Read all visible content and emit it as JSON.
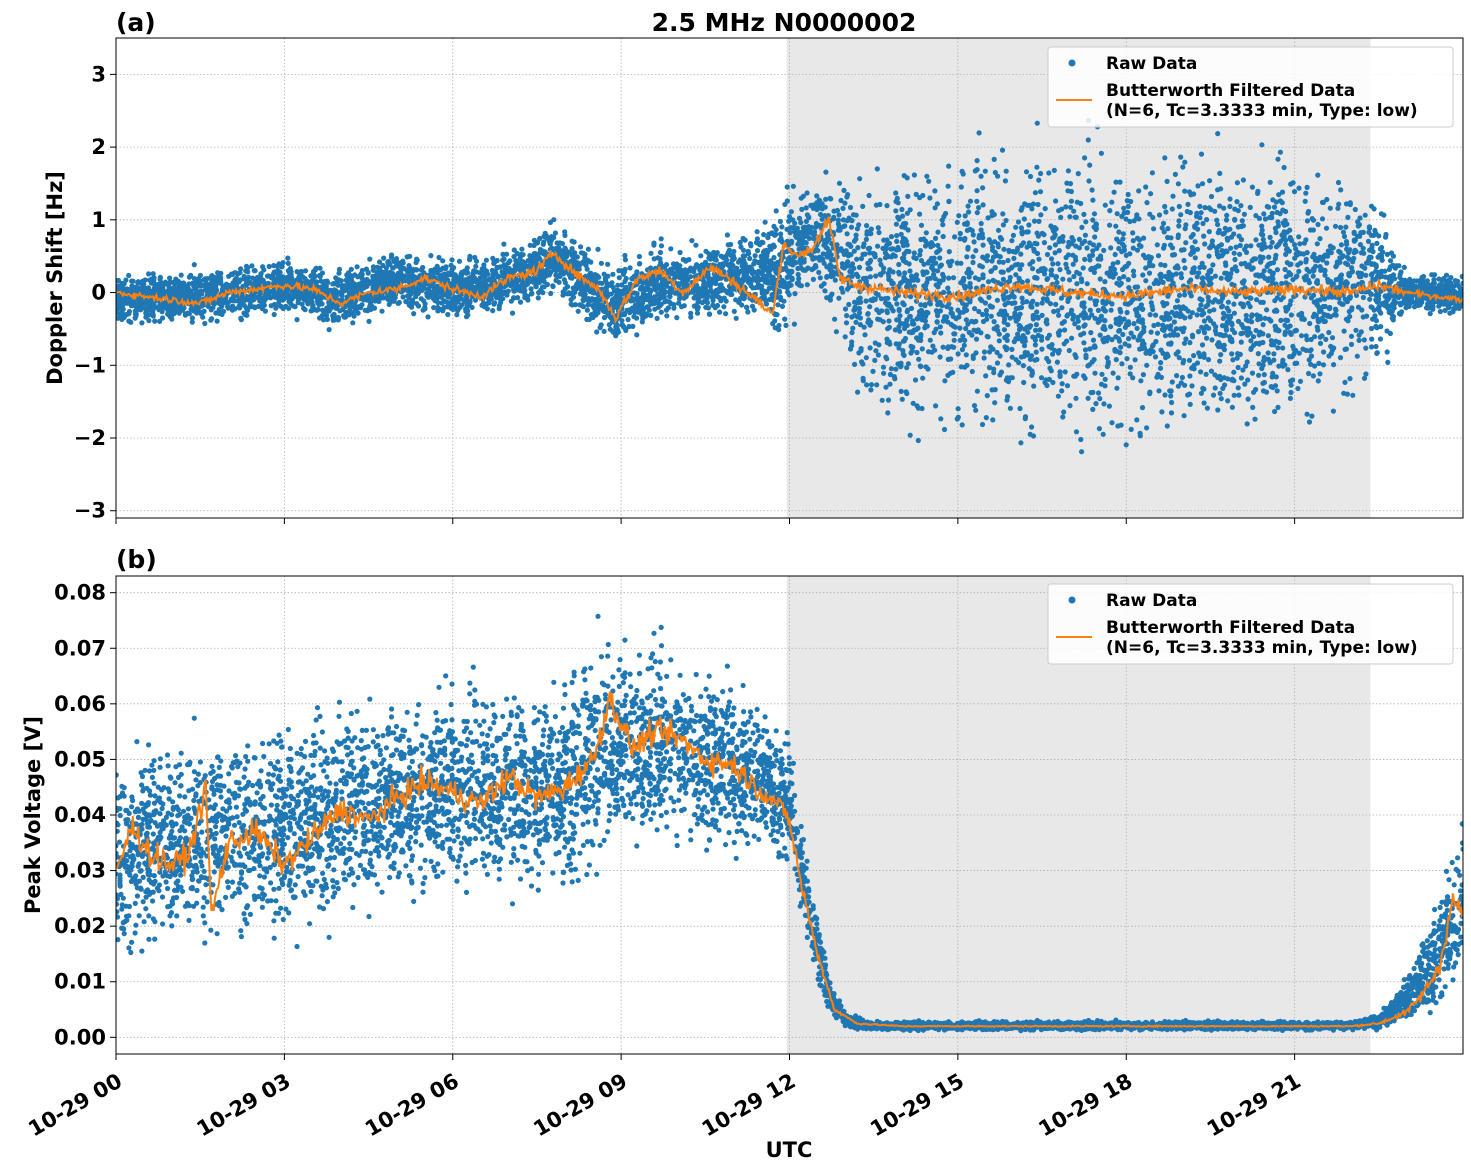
{
  "figure": {
    "title": "2.5 MHz N0000002",
    "xlabel": "UTC"
  },
  "chart_data": [
    {
      "type": "scatter",
      "panel_label": "(a)",
      "title": "2.5 MHz N0000002",
      "xlabel": "",
      "ylabel": "Doppler Shift [Hz]",
      "xlim": [
        "10-29 00:00",
        "10-29 24:00"
      ],
      "ylim": [
        -3.1,
        3.5
      ],
      "yticks": [
        -3,
        -2,
        -1,
        0,
        1,
        2,
        3
      ],
      "ytick_labels": [
        "−3",
        "−2",
        "−1",
        "0",
        "1",
        "2",
        "3"
      ],
      "xticks_hours": [
        0,
        3,
        6,
        9,
        12,
        15,
        18,
        21
      ],
      "shaded_region_hours": [
        11.95,
        22.35
      ],
      "grid": true,
      "legend_position": "top-right",
      "series": [
        {
          "name": "Raw Data",
          "kind": "points",
          "color": "#1f77b4",
          "envelope_hours": [
            0,
            1,
            2,
            3,
            4,
            5,
            6,
            7,
            7.8,
            8.5,
            8.9,
            9.5,
            10.5,
            11.2,
            11.9,
            12.5,
            12.9,
            13.5,
            15,
            17,
            19,
            21,
            22.5,
            23,
            24
          ],
          "envelope_low": [
            -0.45,
            -0.5,
            -0.45,
            -0.35,
            -0.55,
            -0.3,
            -0.4,
            -0.35,
            -0.1,
            -0.45,
            -0.9,
            -0.5,
            -0.45,
            -0.35,
            -0.7,
            0,
            -1.0,
            -2.0,
            -2.2,
            -2.3,
            -2.3,
            -2.2,
            -1.4,
            -0.3,
            -0.4
          ],
          "envelope_high": [
            0.3,
            0.3,
            0.45,
            0.5,
            0.35,
            0.65,
            0.5,
            0.65,
            1.1,
            0.55,
            0.55,
            0.7,
            0.8,
            0.8,
            1.4,
            1.7,
            1.9,
            2.0,
            2.2,
            2.3,
            2.2,
            2.3,
            1.7,
            0.3,
            0.3
          ]
        },
        {
          "name": "Butterworth Filtered Data\n(N=6, Tc=3.3333 min, Type: low)",
          "kind": "line",
          "color": "#ff7f0e",
          "x_hours": [
            0,
            0.5,
            1.0,
            1.5,
            2.0,
            2.5,
            3.0,
            3.5,
            4.0,
            4.5,
            5.0,
            5.5,
            6.0,
            6.5,
            7.0,
            7.5,
            7.8,
            8.2,
            8.6,
            8.9,
            9.3,
            9.7,
            10.1,
            10.6,
            11.0,
            11.4,
            11.7,
            11.9,
            12.1,
            12.4,
            12.7,
            12.9,
            13.2,
            14,
            15,
            16,
            17,
            18,
            19,
            20,
            21,
            22,
            22.5,
            23,
            23.5,
            24
          ],
          "y": [
            0.0,
            -0.05,
            -0.1,
            -0.15,
            0.0,
            0.05,
            0.1,
            0.05,
            -0.15,
            0.0,
            0.05,
            0.2,
            0.05,
            -0.05,
            0.2,
            0.3,
            0.55,
            0.25,
            0.05,
            -0.35,
            0.2,
            0.3,
            0.0,
            0.35,
            0.15,
            -0.1,
            -0.3,
            0.7,
            0.5,
            0.6,
            1.0,
            0.2,
            0.1,
            0.0,
            -0.05,
            0.1,
            0.0,
            -0.05,
            0.05,
            0.0,
            0.05,
            0.0,
            0.1,
            0.0,
            -0.05,
            -0.1
          ]
        }
      ]
    },
    {
      "type": "scatter",
      "panel_label": "(b)",
      "title": "",
      "xlabel": "UTC",
      "ylabel": "Peak Voltage [V]",
      "xlim": [
        "10-29 00:00",
        "10-29 24:00"
      ],
      "ylim": [
        -0.003,
        0.083
      ],
      "yticks": [
        0.0,
        0.01,
        0.02,
        0.03,
        0.04,
        0.05,
        0.06,
        0.07,
        0.08
      ],
      "ytick_labels": [
        "0.00",
        "0.01",
        "0.02",
        "0.03",
        "0.04",
        "0.05",
        "0.06",
        "0.07",
        "0.08"
      ],
      "xticks_hours": [
        0,
        3,
        6,
        9,
        12,
        15,
        18,
        21
      ],
      "xtick_labels": [
        "10-29 00",
        "10-29 03",
        "10-29 06",
        "10-29 09",
        "10-29 12",
        "10-29 15",
        "10-29 18",
        "10-29 21"
      ],
      "shaded_region_hours": [
        11.95,
        22.35
      ],
      "grid": true,
      "legend_position": "top-right",
      "series": [
        {
          "name": "Raw Data",
          "kind": "points",
          "color": "#1f77b4",
          "envelope_hours": [
            0,
            1,
            2,
            3,
            4,
            5,
            6,
            7,
            8,
            8.5,
            9.5,
            10.5,
            11.3,
            12.0,
            12.3,
            12.7,
            13.0,
            13.5,
            16,
            19,
            22,
            22.5,
            23.0,
            23.5,
            24
          ],
          "envelope_low": [
            0.012,
            0.013,
            0.016,
            0.014,
            0.019,
            0.022,
            0.024,
            0.022,
            0.022,
            0.03,
            0.033,
            0.031,
            0.032,
            0.03,
            0.015,
            0.004,
            0.0015,
            0.0012,
            0.0012,
            0.0012,
            0.0012,
            0.0015,
            0.002,
            0.003,
            0.006
          ],
          "envelope_high": [
            0.055,
            0.055,
            0.058,
            0.06,
            0.062,
            0.064,
            0.066,
            0.066,
            0.068,
            0.074,
            0.074,
            0.07,
            0.064,
            0.054,
            0.035,
            0.012,
            0.0045,
            0.003,
            0.003,
            0.003,
            0.003,
            0.0045,
            0.012,
            0.025,
            0.043
          ]
        },
        {
          "name": "Butterworth Filtered Data\n(N=6, Tc=3.3333 min, Type: low)",
          "kind": "line",
          "color": "#ff7f0e",
          "x_hours": [
            0,
            0.3,
            0.6,
            1.0,
            1.3,
            1.6,
            1.7,
            2.0,
            2.5,
            3.0,
            3.5,
            4.0,
            4.5,
            5.0,
            5.5,
            6.0,
            6.5,
            7.0,
            7.5,
            8.0,
            8.5,
            8.8,
            9.2,
            9.6,
            10.0,
            10.5,
            11.0,
            11.4,
            11.8,
            12.0,
            12.2,
            12.5,
            12.8,
            13.2,
            14,
            16,
            18,
            20,
            22,
            22.5,
            23.0,
            23.3,
            23.6,
            23.8,
            24
          ],
          "y": [
            0.03,
            0.038,
            0.033,
            0.031,
            0.033,
            0.045,
            0.022,
            0.035,
            0.037,
            0.031,
            0.036,
            0.041,
            0.039,
            0.043,
            0.046,
            0.044,
            0.042,
            0.047,
            0.043,
            0.045,
            0.05,
            0.061,
            0.052,
            0.055,
            0.054,
            0.05,
            0.049,
            0.045,
            0.042,
            0.039,
            0.028,
            0.015,
            0.005,
            0.0025,
            0.002,
            0.002,
            0.002,
            0.002,
            0.002,
            0.0025,
            0.0045,
            0.008,
            0.013,
            0.025,
            0.022
          ]
        }
      ]
    }
  ]
}
